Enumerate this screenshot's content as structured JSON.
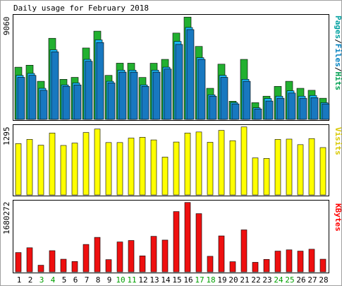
{
  "chart_data": [
    {
      "type": "bar",
      "title": "Daily usage for February 2018",
      "ymax_label": "9060",
      "ylim": [
        0,
        9060
      ],
      "categories": [
        "1",
        "2",
        "3",
        "4",
        "5",
        "6",
        "7",
        "8",
        "9",
        "10",
        "11",
        "12",
        "13",
        "14",
        "15",
        "16",
        "17",
        "18",
        "19",
        "20",
        "21",
        "22",
        "23",
        "24",
        "25",
        "26",
        "27",
        "28"
      ],
      "weekend_days": [
        "3",
        "4",
        "10",
        "11",
        "17",
        "18",
        "24",
        "25"
      ],
      "legend": [
        {
          "text": "Pages",
          "color": "#00a0a0"
        },
        {
          "text": "/",
          "color": "#000000"
        },
        {
          "text": "Files",
          "color": "#0080c0"
        },
        {
          "text": "/",
          "color": "#000000"
        },
        {
          "text": "Hits",
          "color": "#00a050"
        }
      ],
      "series": [
        {
          "name": "Hits",
          "color": "#22b030",
          "values": [
            4616,
            4791,
            3368,
            7172,
            3542,
            3716,
            6314,
            7805,
            3891,
            4971,
            4970,
            3709,
            4964,
            5308,
            7633,
            9047,
            6453,
            2747,
            4883,
            1604,
            5308,
            1476,
            2049,
            2920,
            3368,
            2747,
            2570,
            1866
          ]
        },
        {
          "name": "Files",
          "color": "#18b8f8",
          "values": [
            3891,
            4066,
            2747,
            6152,
            3048,
            3221,
            5308,
            7032,
            3368,
            4356,
            4352,
            3048,
            4356,
            4616,
            6897,
            8129,
            5459,
            2172,
            3891,
            1488,
            3542,
            1025,
            1844,
            2049,
            2525,
            2049,
            2111,
            1476
          ]
        },
        {
          "name": "Pages",
          "color": "#1878c0",
          "values": [
            3716,
            3891,
            2570,
            5971,
            2925,
            3048,
            5139,
            6800,
            3221,
            4180,
            4180,
            2920,
            4180,
            4452,
            6630,
            7940,
            5308,
            2049,
            3716,
            1366,
            3368,
            922,
            1620,
            1866,
            2325,
            1866,
            1920,
            1366
          ]
        }
      ]
    },
    {
      "type": "bar",
      "ymax_label": "1295",
      "ylim": [
        0,
        1295
      ],
      "legend": [
        {
          "text": "Visits",
          "color": "#d8c800"
        }
      ],
      "series": [
        {
          "name": "Visits",
          "color": "#ffff00",
          "values": [
            970,
            1050,
            940,
            1170,
            935,
            980,
            1180,
            1245,
            990,
            990,
            1075,
            1090,
            1040,
            715,
            1000,
            1170,
            1190,
            995,
            1220,
            1025,
            1285,
            700,
            690,
            1050,
            1055,
            950,
            1065,
            895
          ]
        }
      ]
    },
    {
      "type": "bar",
      "ymax_label": "1680272",
      "ylim": [
        0,
        1680272
      ],
      "legend": [
        {
          "text": "KBytes",
          "color": "#ff0000"
        }
      ],
      "series": [
        {
          "name": "KBytes",
          "color": "#ee1010",
          "values": [
            465000,
            580000,
            160000,
            510000,
            305000,
            250000,
            660000,
            830000,
            295000,
            720000,
            755000,
            385000,
            855000,
            765000,
            1450000,
            1668000,
            1400000,
            375000,
            865000,
            245000,
            1010000,
            230000,
            300000,
            500000,
            530000,
            500000,
            545000,
            305000
          ]
        }
      ]
    }
  ]
}
